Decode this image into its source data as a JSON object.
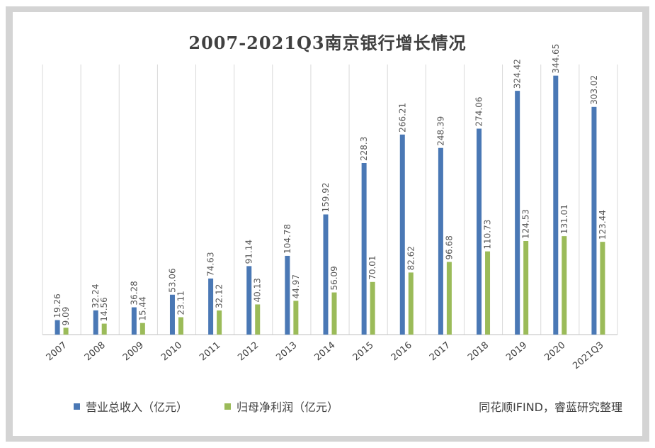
{
  "chart_data": {
    "type": "bar",
    "title": "2007-2021Q3南京银行增长情况",
    "categories": [
      "2007",
      "2008",
      "2009",
      "2010",
      "2011",
      "2012",
      "2013",
      "2014",
      "2015",
      "2016",
      "2017",
      "2018",
      "2019",
      "2020",
      "2021Q3"
    ],
    "series": [
      {
        "name": "营业总收入（亿元）",
        "color": "#4a78b5",
        "values": [
          19.26,
          32.24,
          36.28,
          53.06,
          74.63,
          91.14,
          104.78,
          159.92,
          228.3,
          266.21,
          248.39,
          274.06,
          324.42,
          344.65,
          303.02
        ],
        "labels": [
          "19.26",
          "32.24",
          "36.28",
          "53.06",
          "74.63",
          "91.14",
          "104.78",
          "159.92",
          "228.3",
          "266.21",
          "248.39",
          "274.06",
          "324.42",
          "344.65",
          "303.02"
        ]
      },
      {
        "name": "归母净利润（亿元）",
        "color": "#9bbb59",
        "values": [
          9.09,
          14.56,
          15.44,
          23.11,
          32.12,
          40.13,
          44.97,
          56.09,
          70.01,
          82.62,
          96.68,
          110.73,
          124.53,
          131.01,
          123.44
        ],
        "labels": [
          "9.09",
          "14.56",
          "15.44",
          "23.11",
          "32.12",
          "40.13",
          "44.97",
          "56.09",
          "70.01",
          "82.62",
          "96.68",
          "110.73",
          "124.53",
          "131.01",
          "123.44"
        ]
      }
    ],
    "ylim": [
      0,
      350
    ],
    "gridlines": "vertical",
    "legend_position": "bottom"
  },
  "source_note": "同花顺IFIND，睿蓝研究整理"
}
